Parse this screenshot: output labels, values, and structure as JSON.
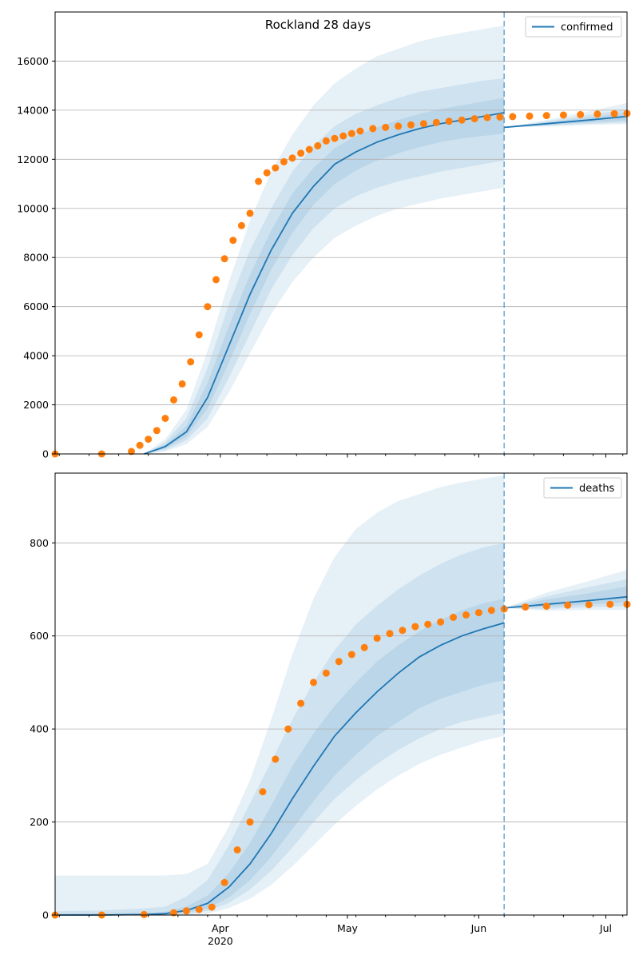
{
  "figure": {
    "title": "Rockland 28 days"
  },
  "x_axis": {
    "start": "2020-02-22",
    "end": "2020-07-06",
    "forecast_start": "2020-06-07",
    "labels": [
      {
        "date": "2020-04-01",
        "text": "Apr",
        "sub": "2020"
      },
      {
        "date": "2020-05-01",
        "text": "May",
        "sub": ""
      },
      {
        "date": "2020-06-01",
        "text": "Jun",
        "sub": ""
      },
      {
        "date": "2020-07-01",
        "text": "Jul",
        "sub": ""
      }
    ]
  },
  "colors": {
    "model": "#1f77b4",
    "observed": "#ff7f0e",
    "band": "#1f77b4",
    "grid": "#b0b0b0",
    "divider": "#1f77b4"
  },
  "chart_data": [
    {
      "type": "line",
      "key": "confirmed",
      "legend": "confirmed",
      "ylim": [
        0,
        18000
      ],
      "yticks": [
        0,
        2000,
        4000,
        6000,
        8000,
        10000,
        12000,
        14000,
        16000
      ],
      "grid": "horizontal",
      "legend_position": "top-right",
      "x": [
        "2020-03-14",
        "2020-03-19",
        "2020-03-24",
        "2020-03-29",
        "2020-04-03",
        "2020-04-08",
        "2020-04-13",
        "2020-04-18",
        "2020-04-23",
        "2020-04-28",
        "2020-05-03",
        "2020-05-08",
        "2020-05-13",
        "2020-05-18",
        "2020-05-23",
        "2020-05-28",
        "2020-06-02",
        "2020-06-07"
      ],
      "model": [
        0,
        300,
        900,
        2300,
        4400,
        6500,
        8300,
        9800,
        10900,
        11800,
        12300,
        12700,
        13000,
        13250,
        13450,
        13600,
        13750,
        13900
      ],
      "band_50": [
        [
          0,
          0
        ],
        [
          220,
          380
        ],
        [
          700,
          1150
        ],
        [
          1850,
          2900
        ],
        [
          3700,
          5200
        ],
        [
          5700,
          7300
        ],
        [
          7500,
          9100
        ],
        [
          9000,
          10600
        ],
        [
          10150,
          11650
        ],
        [
          11000,
          12450
        ],
        [
          11550,
          12950
        ],
        [
          11950,
          13300
        ],
        [
          12250,
          13600
        ],
        [
          12500,
          13850
        ],
        [
          12700,
          14050
        ],
        [
          12850,
          14200
        ],
        [
          12950,
          14350
        ],
        [
          13050,
          14500
        ]
      ],
      "band_80": [
        [
          0,
          0
        ],
        [
          160,
          480
        ],
        [
          550,
          1450
        ],
        [
          1450,
          3500
        ],
        [
          3100,
          6100
        ],
        [
          4900,
          8300
        ],
        [
          6700,
          10000
        ],
        [
          8100,
          11500
        ],
        [
          9200,
          12550
        ],
        [
          10000,
          13350
        ],
        [
          10500,
          13850
        ],
        [
          10850,
          14200
        ],
        [
          11100,
          14500
        ],
        [
          11300,
          14750
        ],
        [
          11500,
          14900
        ],
        [
          11650,
          15050
        ],
        [
          11800,
          15200
        ],
        [
          11950,
          15300
        ]
      ],
      "band_95": [
        [
          0,
          0
        ],
        [
          100,
          600
        ],
        [
          400,
          1800
        ],
        [
          1100,
          4200
        ],
        [
          2500,
          7000
        ],
        [
          4100,
          9500
        ],
        [
          5700,
          11500
        ],
        [
          7000,
          13000
        ],
        [
          8000,
          14200
        ],
        [
          8800,
          15100
        ],
        [
          9300,
          15700
        ],
        [
          9700,
          16200
        ],
        [
          10000,
          16500
        ],
        [
          10200,
          16800
        ],
        [
          10400,
          17000
        ],
        [
          10550,
          17150
        ],
        [
          10700,
          17300
        ],
        [
          10850,
          17450
        ]
      ],
      "forecast_x": [
        "2020-06-07",
        "2020-06-17",
        "2020-06-27",
        "2020-07-06"
      ],
      "forecast_model": [
        13300,
        13450,
        13600,
        13750
      ],
      "forecast_band_50": [
        [
          13300,
          13300
        ],
        [
          13400,
          13500
        ],
        [
          13500,
          13700
        ],
        [
          13580,
          13900
        ]
      ],
      "forecast_band_80": [
        [
          13300,
          13300
        ],
        [
          13370,
          13550
        ],
        [
          13450,
          13800
        ],
        [
          13500,
          14050
        ]
      ],
      "forecast_band_95": [
        [
          13300,
          13300
        ],
        [
          13330,
          13600
        ],
        [
          13400,
          13950
        ],
        [
          13430,
          14300
        ]
      ],
      "observed_x": [
        "2020-02-22",
        "2020-03-04",
        "2020-03-11",
        "2020-03-13",
        "2020-03-15",
        "2020-03-17",
        "2020-03-19",
        "2020-03-21",
        "2020-03-23",
        "2020-03-25",
        "2020-03-27",
        "2020-03-29",
        "2020-03-31",
        "2020-04-02",
        "2020-04-04",
        "2020-04-06",
        "2020-04-08",
        "2020-04-10",
        "2020-04-12",
        "2020-04-14",
        "2020-04-16",
        "2020-04-18",
        "2020-04-20",
        "2020-04-22",
        "2020-04-24",
        "2020-04-26",
        "2020-04-28",
        "2020-04-30",
        "2020-05-02",
        "2020-05-04",
        "2020-05-07",
        "2020-05-10",
        "2020-05-13",
        "2020-05-16",
        "2020-05-19",
        "2020-05-22",
        "2020-05-25",
        "2020-05-28",
        "2020-05-31",
        "2020-06-03",
        "2020-06-06",
        "2020-06-09",
        "2020-06-13",
        "2020-06-17",
        "2020-06-21",
        "2020-06-25",
        "2020-06-29",
        "2020-07-03",
        "2020-07-06"
      ],
      "observed": [
        0,
        0,
        100,
        350,
        600,
        950,
        1450,
        2200,
        2850,
        3750,
        4850,
        6000,
        7100,
        7950,
        8700,
        9300,
        9800,
        11100,
        11450,
        11650,
        11900,
        12050,
        12250,
        12400,
        12550,
        12750,
        12850,
        12950,
        13050,
        13150,
        13250,
        13300,
        13350,
        13400,
        13450,
        13500,
        13550,
        13600,
        13650,
        13700,
        13720,
        13740,
        13760,
        13780,
        13800,
        13820,
        13840,
        13860,
        13870
      ]
    },
    {
      "type": "line",
      "key": "deaths",
      "legend": "deaths",
      "ylim": [
        0,
        950
      ],
      "yticks": [
        0,
        200,
        400,
        600,
        800
      ],
      "grid": "horizontal",
      "legend_position": "top-right",
      "x": [
        "2020-02-22",
        "2020-03-04",
        "2020-03-14",
        "2020-03-19",
        "2020-03-24",
        "2020-03-29",
        "2020-04-03",
        "2020-04-08",
        "2020-04-13",
        "2020-04-18",
        "2020-04-23",
        "2020-04-28",
        "2020-05-03",
        "2020-05-08",
        "2020-05-13",
        "2020-05-18",
        "2020-05-23",
        "2020-05-28",
        "2020-06-02",
        "2020-06-07"
      ],
      "model": [
        0,
        0,
        1,
        3,
        10,
        25,
        60,
        110,
        175,
        250,
        320,
        385,
        435,
        480,
        520,
        555,
        580,
        600,
        615,
        628
      ],
      "band_50": [
        [
          0,
          3
        ],
        [
          0,
          4
        ],
        [
          0,
          5
        ],
        [
          1,
          7
        ],
        [
          5,
          18
        ],
        [
          14,
          42
        ],
        [
          38,
          90
        ],
        [
          75,
          155
        ],
        [
          125,
          235
        ],
        [
          185,
          320
        ],
        [
          245,
          390
        ],
        [
          300,
          450
        ],
        [
          345,
          500
        ],
        [
          385,
          545
        ],
        [
          415,
          580
        ],
        [
          445,
          610
        ],
        [
          465,
          635
        ],
        [
          480,
          655
        ],
        [
          495,
          670
        ],
        [
          505,
          680
        ]
      ],
      "band_80": [
        [
          0,
          8
        ],
        [
          0,
          10
        ],
        [
          0,
          14
        ],
        [
          0,
          18
        ],
        [
          2,
          40
        ],
        [
          9,
          75
        ],
        [
          26,
          150
        ],
        [
          55,
          240
        ],
        [
          95,
          330
        ],
        [
          145,
          420
        ],
        [
          200,
          500
        ],
        [
          250,
          570
        ],
        [
          290,
          625
        ],
        [
          325,
          665
        ],
        [
          355,
          700
        ],
        [
          380,
          730
        ],
        [
          400,
          755
        ],
        [
          415,
          775
        ],
        [
          425,
          790
        ],
        [
          435,
          800
        ]
      ],
      "band_95": [
        [
          0,
          85
        ],
        [
          0,
          85
        ],
        [
          0,
          85
        ],
        [
          0,
          85
        ],
        [
          0,
          88
        ],
        [
          3,
          110
        ],
        [
          15,
          190
        ],
        [
          35,
          290
        ],
        [
          65,
          420
        ],
        [
          105,
          560
        ],
        [
          150,
          680
        ],
        [
          195,
          770
        ],
        [
          235,
          830
        ],
        [
          270,
          865
        ],
        [
          300,
          890
        ],
        [
          325,
          905
        ],
        [
          345,
          920
        ],
        [
          360,
          930
        ],
        [
          375,
          938
        ],
        [
          385,
          945
        ]
      ],
      "forecast_x": [
        "2020-06-07",
        "2020-06-17",
        "2020-06-27",
        "2020-07-06"
      ],
      "forecast_model": [
        660,
        668,
        676,
        684
      ],
      "forecast_band_50": [
        [
          660,
          660
        ],
        [
          662,
          678
        ],
        [
          668,
          692
        ],
        [
          672,
          706
        ]
      ],
      "forecast_band_80": [
        [
          660,
          660
        ],
        [
          658,
          685
        ],
        [
          662,
          705
        ],
        [
          664,
          722
        ]
      ],
      "forecast_band_95": [
        [
          660,
          660
        ],
        [
          654,
          693
        ],
        [
          656,
          718
        ],
        [
          656,
          742
        ]
      ],
      "observed_x": [
        "2020-02-22",
        "2020-03-04",
        "2020-03-14",
        "2020-03-21",
        "2020-03-24",
        "2020-03-27",
        "2020-03-30",
        "2020-04-02",
        "2020-04-05",
        "2020-04-08",
        "2020-04-11",
        "2020-04-14",
        "2020-04-17",
        "2020-04-20",
        "2020-04-23",
        "2020-04-26",
        "2020-04-29",
        "2020-05-02",
        "2020-05-05",
        "2020-05-08",
        "2020-05-11",
        "2020-05-14",
        "2020-05-17",
        "2020-05-20",
        "2020-05-23",
        "2020-05-26",
        "2020-05-29",
        "2020-06-01",
        "2020-06-04",
        "2020-06-07",
        "2020-06-12",
        "2020-06-17",
        "2020-06-22",
        "2020-06-27",
        "2020-07-02",
        "2020-07-06"
      ],
      "observed": [
        0,
        0,
        1,
        5,
        9,
        12,
        17,
        70,
        140,
        200,
        265,
        335,
        400,
        455,
        500,
        520,
        545,
        560,
        575,
        595,
        605,
        612,
        620,
        625,
        630,
        640,
        645,
        650,
        655,
        658,
        662,
        664,
        666,
        667,
        668,
        668
      ]
    }
  ]
}
